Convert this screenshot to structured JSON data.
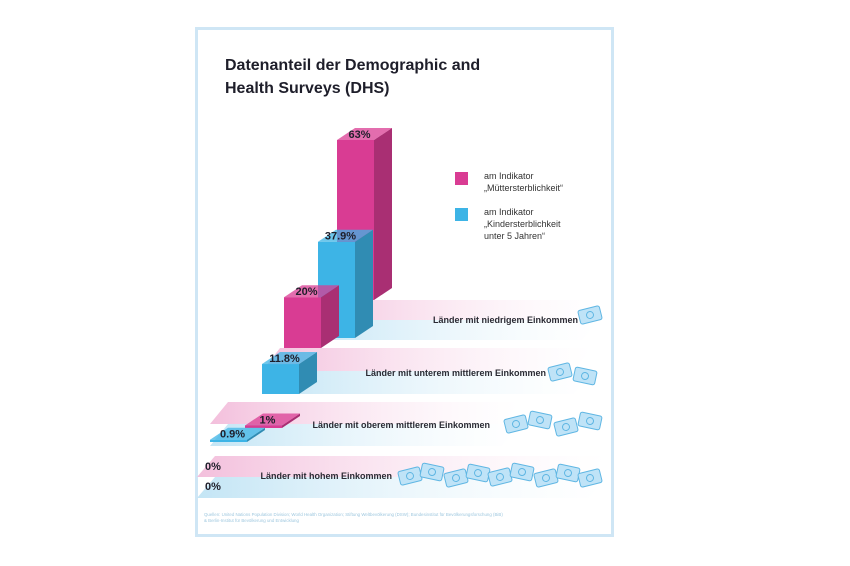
{
  "title": "Datenanteil der Demographic and\nHealth Surveys (DHS)",
  "colors": {
    "pink": "#d93c93",
    "blue": "#3db4e6",
    "frame": "#cfe6f5",
    "band_pink": "#f3bfdc",
    "band_blue": "#c3e5f5"
  },
  "legend": [
    {
      "label": "am Indikator\n„Müttersterblichkeit“",
      "color": "#d93c93",
      "icon": "pink-square"
    },
    {
      "label": "am Indikator\n„Kindersterblichkeit\nunter 5 Jahren“",
      "color": "#3db4e6",
      "icon": "blue-square"
    }
  ],
  "source": "Quellen: United Nations Population Division; World Health Organization; Stiftung Weltbevölkerung (DSW); Bundesinstitut für Bevölkerungsforschung (BiB) & Berlin-Institut für Bevölkerung und Entwicklung",
  "chart_data": {
    "type": "bar",
    "title": "Datenanteil der Demographic and Health Surveys (DHS)",
    "categories": [
      "Länder mit niedrigem Einkommen",
      "Länder mit unterem mittlerem Einkommen",
      "Länder mit oberem mittlerem Einkommen",
      "Länder mit hohem Einkommen"
    ],
    "series": [
      {
        "name": "am Indikator „Müttersterblichkeit“",
        "values": [
          63,
          20,
          1,
          0
        ],
        "labels": [
          "63%",
          "20%",
          "1%",
          "0%"
        ]
      },
      {
        "name": "am Indikator „Kindersterblichkeit unter 5 Jahren“",
        "values": [
          37.9,
          11.8,
          0.9,
          0
        ],
        "labels": [
          "37.9%",
          "11.8%",
          "0.9%",
          "0%"
        ]
      }
    ],
    "ylim": [
      0,
      63
    ],
    "grid": false,
    "legend_position": "right"
  }
}
